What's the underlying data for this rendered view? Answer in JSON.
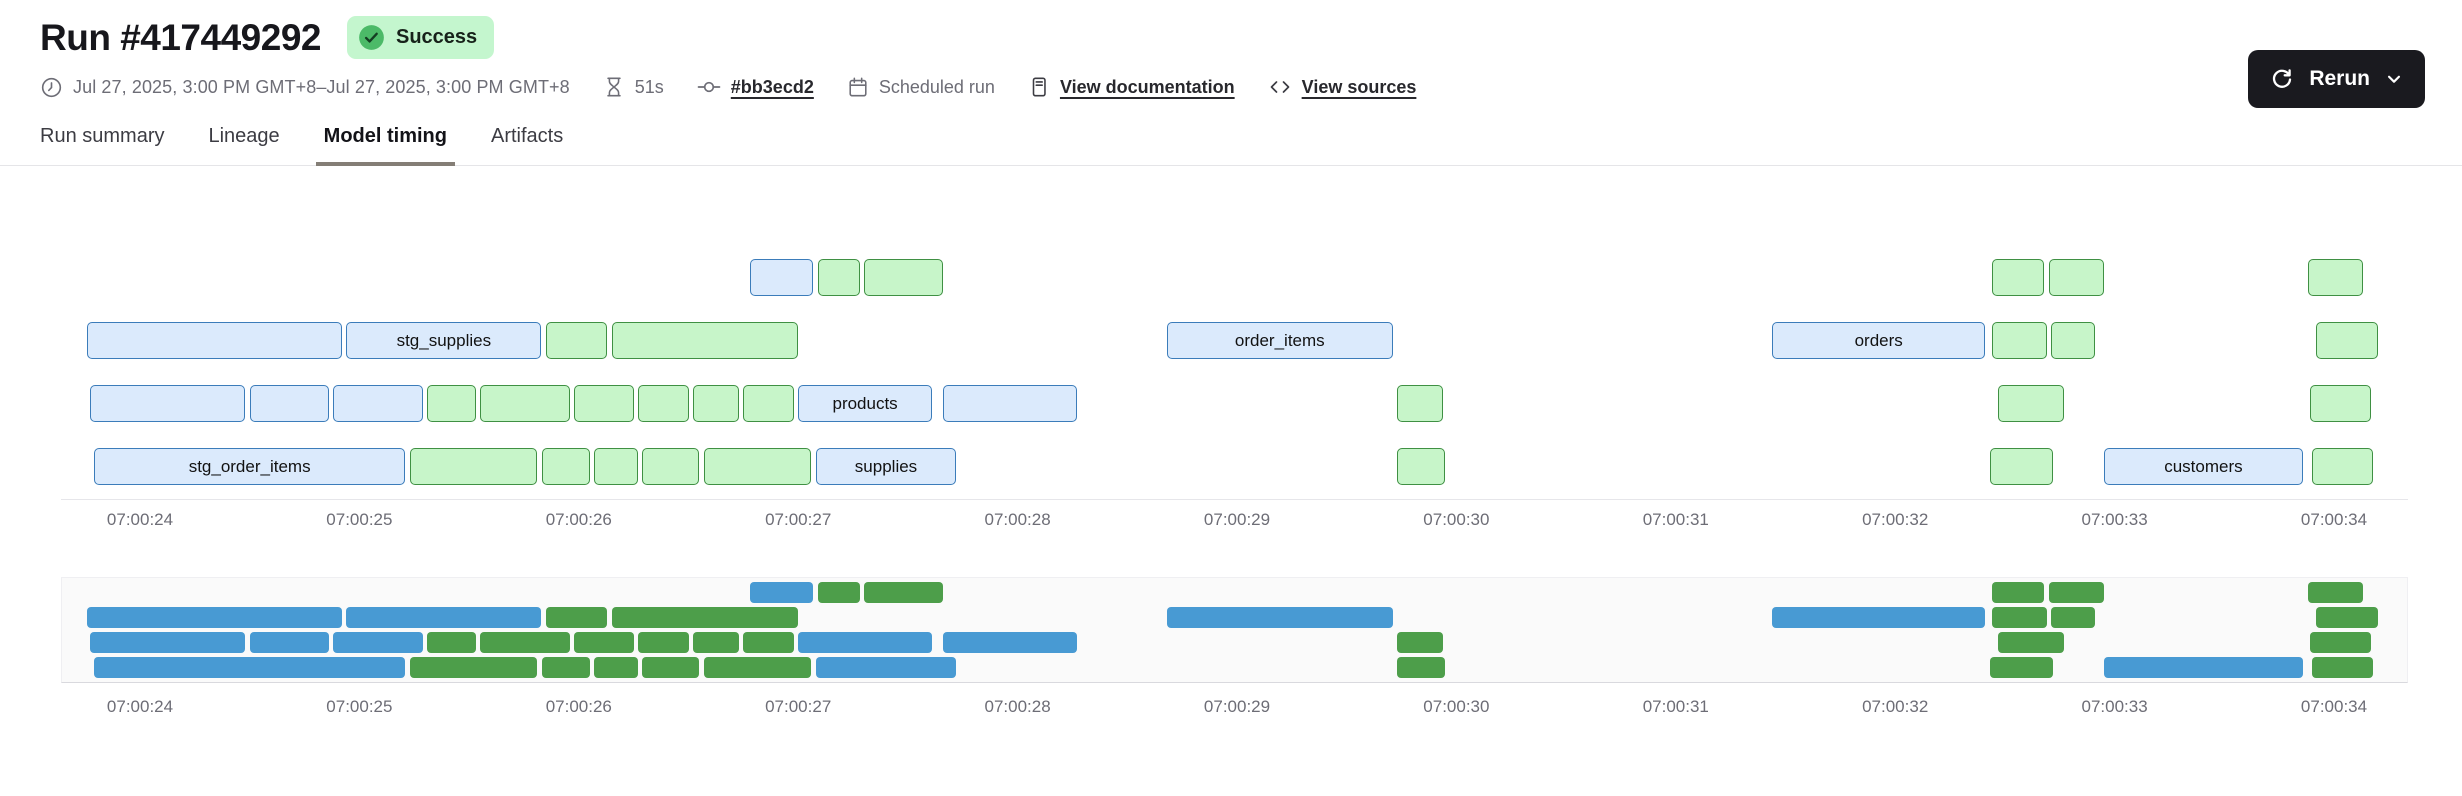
{
  "header": {
    "title": "Run #417449292",
    "status": "Success"
  },
  "rerun": {
    "label": "Rerun"
  },
  "meta": {
    "date_range": "Jul 27, 2025, 3:00 PM GMT+8–Jul 27, 2025, 3:00 PM GMT+8",
    "duration": "51s",
    "commit": "#bb3ecd2",
    "trigger": "Scheduled run",
    "docs_link": "View documentation",
    "sources_link": "View sources"
  },
  "tabs": {
    "items": [
      {
        "label": "Run summary",
        "active": false
      },
      {
        "label": "Lineage",
        "active": false
      },
      {
        "label": "Model timing",
        "active": true
      },
      {
        "label": "Artifacts",
        "active": false
      }
    ]
  },
  "chart_data": {
    "type": "gantt",
    "title": "Model timing",
    "x_axis": {
      "tick_labels": [
        "07:00:24",
        "07:00:25",
        "07:00:26",
        "07:00:27",
        "07:00:28",
        "07:00:29",
        "07:00:30",
        "07:00:31",
        "07:00:32",
        "07:00:33",
        "07:00:34"
      ],
      "seconds_per_tick": 1,
      "grid": false
    },
    "colors": {
      "bar_blue_fill": "#dbeafc",
      "bar_blue_border": "#3b7cba",
      "bar_green_fill": "#c7f5c9",
      "bar_green_border": "#3f9043",
      "minimap_blue": "#489ad3",
      "minimap_green": "#4d9e4a"
    },
    "rows": [
      [
        {
          "start": 2.78,
          "end": 3.07,
          "color": "blue"
        },
        {
          "start": 3.09,
          "end": 3.28,
          "color": "green"
        },
        {
          "start": 3.3,
          "end": 3.66,
          "color": "green"
        },
        {
          "start": 8.44,
          "end": 8.68,
          "color": "green"
        },
        {
          "start": 8.7,
          "end": 8.95,
          "color": "green"
        },
        {
          "start": 9.88,
          "end": 10.13,
          "color": "green"
        }
      ],
      [
        {
          "start": -0.24,
          "end": 0.92,
          "color": "blue"
        },
        {
          "start": 0.94,
          "end": 1.83,
          "color": "blue",
          "label": "stg_supplies"
        },
        {
          "start": 1.85,
          "end": 2.13,
          "color": "green"
        },
        {
          "start": 2.15,
          "end": 3.0,
          "color": "green"
        },
        {
          "start": 4.68,
          "end": 5.71,
          "color": "blue",
          "label": "order_items"
        },
        {
          "start": 7.44,
          "end": 8.41,
          "color": "blue",
          "label": "orders"
        },
        {
          "start": 8.44,
          "end": 8.69,
          "color": "green"
        },
        {
          "start": 8.71,
          "end": 8.91,
          "color": "green"
        },
        {
          "start": 9.92,
          "end": 10.2,
          "color": "green"
        }
      ],
      [
        {
          "start": -0.23,
          "end": 0.48,
          "color": "blue"
        },
        {
          "start": 0.5,
          "end": 0.86,
          "color": "blue"
        },
        {
          "start": 0.88,
          "end": 1.29,
          "color": "blue"
        },
        {
          "start": 1.31,
          "end": 1.53,
          "color": "green"
        },
        {
          "start": 1.55,
          "end": 1.96,
          "color": "green"
        },
        {
          "start": 1.98,
          "end": 2.25,
          "color": "green"
        },
        {
          "start": 2.27,
          "end": 2.5,
          "color": "green"
        },
        {
          "start": 2.52,
          "end": 2.73,
          "color": "green"
        },
        {
          "start": 2.75,
          "end": 2.98,
          "color": "green"
        },
        {
          "start": 3.0,
          "end": 3.61,
          "color": "blue",
          "label": "products"
        },
        {
          "start": 3.66,
          "end": 4.27,
          "color": "blue"
        },
        {
          "start": 5.73,
          "end": 5.94,
          "color": "green"
        },
        {
          "start": 8.47,
          "end": 8.77,
          "color": "green"
        },
        {
          "start": 9.89,
          "end": 10.17,
          "color": "green"
        }
      ],
      [
        {
          "start": -0.21,
          "end": 1.21,
          "color": "blue",
          "label": "stg_order_items"
        },
        {
          "start": 1.23,
          "end": 1.81,
          "color": "green"
        },
        {
          "start": 1.83,
          "end": 2.05,
          "color": "green"
        },
        {
          "start": 2.07,
          "end": 2.27,
          "color": "green"
        },
        {
          "start": 2.29,
          "end": 2.55,
          "color": "green"
        },
        {
          "start": 2.57,
          "end": 3.06,
          "color": "green"
        },
        {
          "start": 3.08,
          "end": 3.72,
          "color": "blue",
          "label": "supplies"
        },
        {
          "start": 5.73,
          "end": 5.95,
          "color": "green"
        },
        {
          "start": 8.43,
          "end": 8.72,
          "color": "green"
        },
        {
          "start": 8.95,
          "end": 9.86,
          "color": "blue",
          "label": "customers"
        },
        {
          "start": 9.9,
          "end": 10.18,
          "color": "green"
        }
      ]
    ]
  }
}
